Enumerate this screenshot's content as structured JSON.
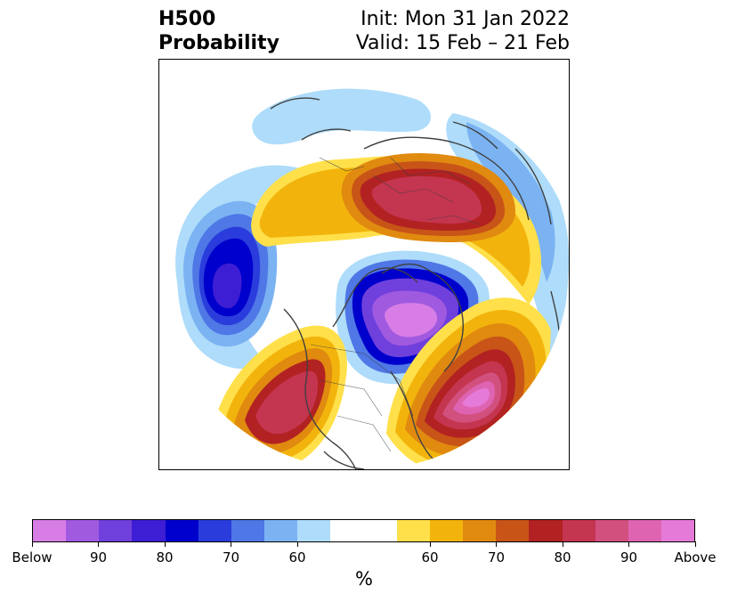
{
  "title": {
    "left_line1": "H500",
    "left_line2": "Probability",
    "right_line1": "Init: Mon 31 Jan 2022",
    "right_line2": "Valid: 15 Feb – 21 Feb"
  },
  "colorbar": {
    "unit": "%",
    "colors": [
      "#d97de6",
      "#a05ae0",
      "#7040dc",
      "#3e1ed4",
      "#0000cc",
      "#2a3ddc",
      "#4f77e6",
      "#7bb3f2",
      "#aedcfa",
      "#ffffff",
      "#ffffff",
      "#ffe04a",
      "#f2b40c",
      "#e08a10",
      "#c85418",
      "#b22222",
      "#c43550",
      "#d2507e",
      "#de64b2",
      "#e67ad8"
    ],
    "ticks": [
      {
        "label": "Below",
        "index": 0
      },
      {
        "label": "90",
        "index": 2
      },
      {
        "label": "80",
        "index": 4
      },
      {
        "label": "70",
        "index": 6
      },
      {
        "label": "60",
        "index": 8
      },
      {
        "label": "60",
        "index": 12
      },
      {
        "label": "70",
        "index": 14
      },
      {
        "label": "80",
        "index": 16
      },
      {
        "label": "90",
        "index": 18
      },
      {
        "label": "Above",
        "index": 20
      }
    ]
  },
  "map": {
    "projection": "north-polar-stereographic",
    "variable": "500 hPa height probability",
    "colors": {
      "below_light": "#aedcfa",
      "below_mid": "#4f77e6",
      "below_strong": "#0000cc",
      "below_extreme": "#a05ae0",
      "below_max": "#d97de6",
      "above_light": "#ffe04a",
      "above_mid": "#f2b40c",
      "above_orange": "#e08a10",
      "above_red": "#b22222",
      "above_crimson": "#c43550",
      "above_pink": "#de64b2",
      "above_max": "#e67ad8",
      "coastline": "#404040"
    }
  }
}
